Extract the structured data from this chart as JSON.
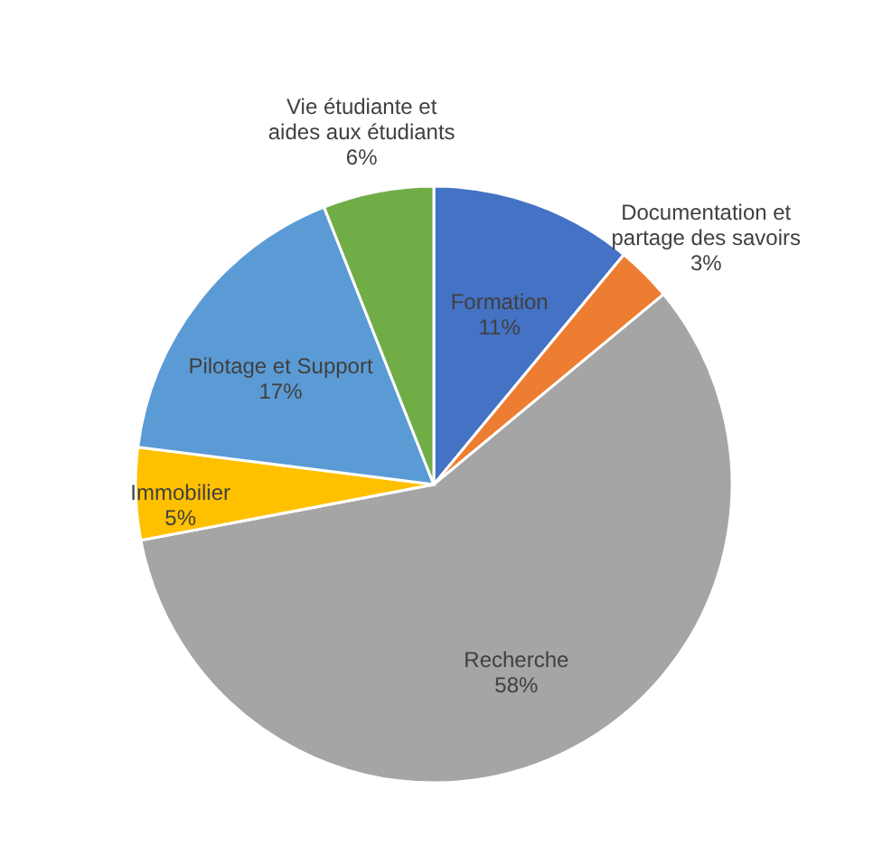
{
  "chart_data": {
    "type": "pie",
    "categories": [
      "Formation",
      "Documentation et\npartage des savoirs",
      "Recherche",
      "Immobilier",
      "Pilotage et Support",
      "Vie étudiante et\naides aux étudiants"
    ],
    "values": [
      11,
      3,
      58,
      5,
      17,
      6
    ],
    "value_labels": [
      "11%",
      "3%",
      "58%",
      "5%",
      "17%",
      "6%"
    ],
    "colors": [
      "#4472c4",
      "#ed7d31",
      "#a5a5a5",
      "#ffc000",
      "#5b9bd5",
      "#70ad47"
    ]
  }
}
